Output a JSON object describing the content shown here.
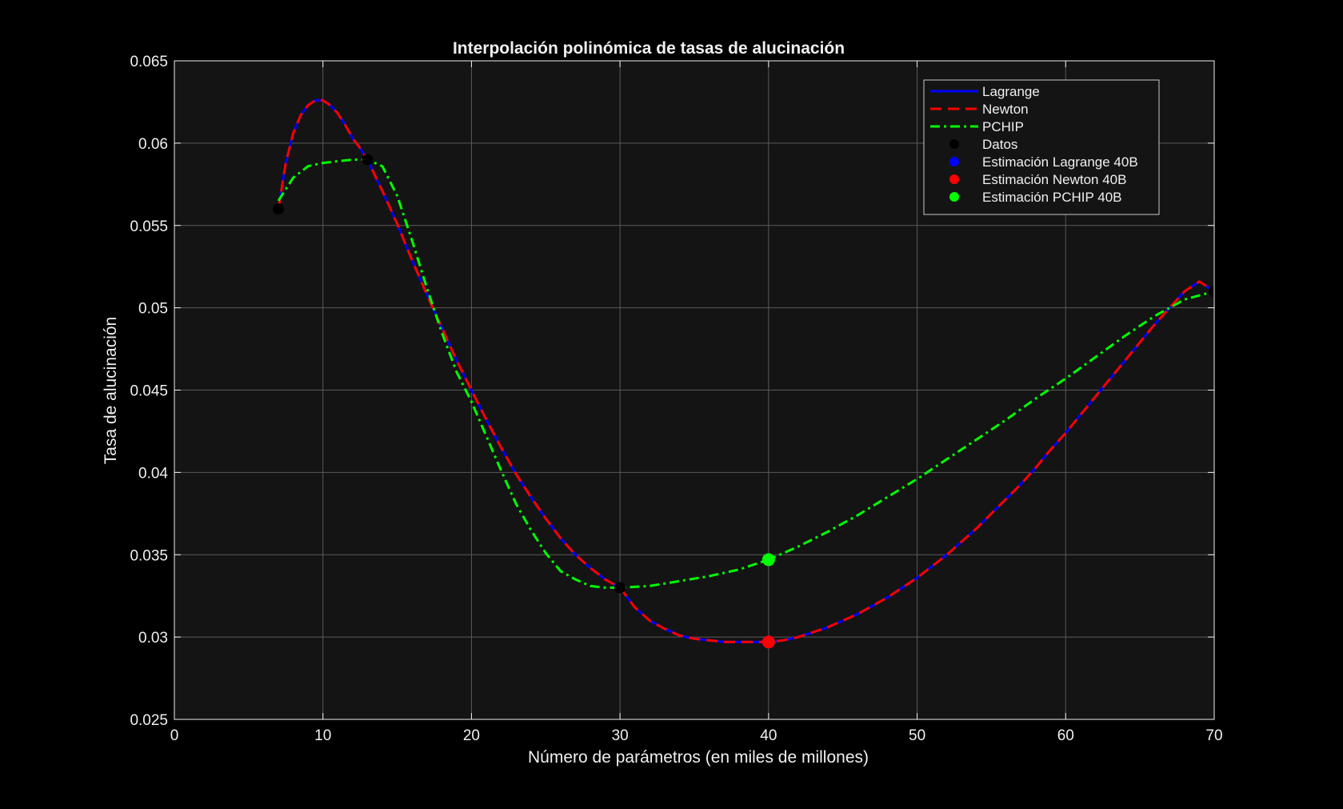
{
  "chart_data": {
    "type": "line",
    "title": "Interpolación polinómica de tasas de alucinación",
    "xlabel": "Número de parámetros (en miles de millones)",
    "ylabel": "Tasa de alucinación",
    "xlim": [
      0,
      70
    ],
    "ylim": [
      0.025,
      0.065
    ],
    "xticks": [
      0,
      10,
      20,
      30,
      40,
      50,
      60,
      70
    ],
    "xtick_labels": [
      "0",
      "10",
      "20",
      "30",
      "40",
      "50",
      "60",
      "70"
    ],
    "yticks": [
      0.025,
      0.03,
      0.035,
      0.04,
      0.045,
      0.05,
      0.055,
      0.06,
      0.065
    ],
    "ytick_labels": [
      "0.025",
      "0.03",
      "0.035",
      "0.04",
      "0.045",
      "0.05",
      "0.055",
      "0.06",
      "0.065"
    ],
    "grid": true,
    "legend_position": "top-right",
    "colors": {
      "background": "#000000",
      "plot_background": "#141414",
      "grid": "#5a5a5a",
      "axis": "#f0f0f0",
      "lagrange": "#0000ff",
      "newton": "#ff0000",
      "pchip": "#00ff00",
      "datos": "#000000"
    },
    "series": [
      {
        "name": "Lagrange",
        "style": "solid",
        "color": "#0000ff",
        "x": [
          7,
          7.5,
          8,
          8.5,
          9,
          9.5,
          10,
          10.5,
          11,
          11.5,
          12,
          12.5,
          13,
          14,
          15,
          16,
          17,
          18,
          19,
          20,
          21,
          22,
          23,
          24,
          25,
          26,
          27,
          28,
          29,
          30,
          31,
          32,
          33,
          34,
          35,
          36,
          37,
          38,
          39,
          40,
          41,
          42,
          43,
          44,
          45,
          46,
          47,
          48,
          49,
          50,
          51,
          52,
          53,
          54,
          55,
          56,
          57,
          58,
          59,
          60,
          61,
          62,
          63,
          64,
          65,
          66,
          67,
          68,
          69,
          70
        ],
        "y": [
          0.056,
          0.0588,
          0.0606,
          0.0617,
          0.0623,
          0.0626,
          0.0626,
          0.0623,
          0.0618,
          0.0611,
          0.0603,
          0.0597,
          0.059,
          0.0571,
          0.0551,
          0.0529,
          0.0508,
          0.0488,
          0.0468,
          0.045,
          0.0432,
          0.0415,
          0.0399,
          0.0385,
          0.0372,
          0.036,
          0.035,
          0.0342,
          0.0335,
          0.033,
          0.0318,
          0.031,
          0.0305,
          0.0301,
          0.0299,
          0.0298,
          0.0297,
          0.0297,
          0.0297,
          0.0297,
          0.0298,
          0.03,
          0.0303,
          0.0306,
          0.031,
          0.0314,
          0.0319,
          0.0324,
          0.033,
          0.0336,
          0.0343,
          0.035,
          0.0358,
          0.0366,
          0.0375,
          0.0384,
          0.0393,
          0.0403,
          0.0414,
          0.0424,
          0.0435,
          0.0446,
          0.0457,
          0.0468,
          0.0479,
          0.049,
          0.05,
          0.051,
          0.0516,
          0.051
        ]
      },
      {
        "name": "Newton",
        "style": "dashed",
        "color": "#ff0000",
        "x": [
          7,
          7.5,
          8,
          8.5,
          9,
          9.5,
          10,
          10.5,
          11,
          11.5,
          12,
          12.5,
          13,
          14,
          15,
          16,
          17,
          18,
          19,
          20,
          21,
          22,
          23,
          24,
          25,
          26,
          27,
          28,
          29,
          30,
          31,
          32,
          33,
          34,
          35,
          36,
          37,
          38,
          39,
          40,
          41,
          42,
          43,
          44,
          45,
          46,
          47,
          48,
          49,
          50,
          51,
          52,
          53,
          54,
          55,
          56,
          57,
          58,
          59,
          60,
          61,
          62,
          63,
          64,
          65,
          66,
          67,
          68,
          69,
          70
        ],
        "y": [
          0.056,
          0.0588,
          0.0606,
          0.0617,
          0.0623,
          0.0626,
          0.0626,
          0.0623,
          0.0618,
          0.0611,
          0.0603,
          0.0597,
          0.059,
          0.0571,
          0.0551,
          0.0529,
          0.0508,
          0.0488,
          0.0468,
          0.045,
          0.0432,
          0.0415,
          0.0399,
          0.0385,
          0.0372,
          0.036,
          0.035,
          0.0342,
          0.0335,
          0.033,
          0.0318,
          0.031,
          0.0305,
          0.0301,
          0.0299,
          0.0298,
          0.0297,
          0.0297,
          0.0297,
          0.0297,
          0.0298,
          0.03,
          0.0303,
          0.0306,
          0.031,
          0.0314,
          0.0319,
          0.0324,
          0.033,
          0.0336,
          0.0343,
          0.035,
          0.0358,
          0.0366,
          0.0375,
          0.0384,
          0.0393,
          0.0403,
          0.0414,
          0.0424,
          0.0435,
          0.0446,
          0.0457,
          0.0468,
          0.0479,
          0.049,
          0.05,
          0.051,
          0.0516,
          0.051
        ]
      },
      {
        "name": "PCHIP",
        "style": "dashdot",
        "color": "#00ff00",
        "x": [
          7,
          8,
          9,
          10,
          11,
          12,
          13,
          14,
          15,
          16,
          17,
          18,
          19,
          20,
          21,
          22,
          23,
          24,
          25,
          26,
          27,
          28,
          29,
          30,
          32,
          34,
          36,
          38,
          40,
          42,
          44,
          46,
          48,
          50,
          52,
          54,
          56,
          58,
          60,
          62,
          64,
          66,
          68,
          70
        ],
        "y": [
          0.0565,
          0.0579,
          0.0586,
          0.0588,
          0.0589,
          0.059,
          0.059,
          0.0586,
          0.0568,
          0.0541,
          0.0512,
          0.0485,
          0.0461,
          0.0443,
          0.0422,
          0.0401,
          0.0381,
          0.0365,
          0.0351,
          0.034,
          0.0335,
          0.0331,
          0.033,
          0.033,
          0.0331,
          0.0334,
          0.0337,
          0.0341,
          0.0347,
          0.0355,
          0.0364,
          0.0374,
          0.0385,
          0.0396,
          0.0408,
          0.042,
          0.0432,
          0.0445,
          0.0457,
          0.047,
          0.0483,
          0.0495,
          0.0505,
          0.051
        ]
      }
    ],
    "points": [
      {
        "name": "Datos",
        "color": "#000000",
        "x": [
          7,
          13,
          30,
          70
        ],
        "y": [
          0.056,
          0.059,
          0.033,
          0.051
        ]
      },
      {
        "name": "Estimación Lagrange 40B",
        "color": "#0000ff",
        "x": [
          40
        ],
        "y": [
          0.0297
        ]
      },
      {
        "name": "Estimación Newton 40B",
        "color": "#ff0000",
        "x": [
          40
        ],
        "y": [
          0.0297
        ]
      },
      {
        "name": "Estimación PCHIP 40B",
        "color": "#00ff00",
        "x": [
          40
        ],
        "y": [
          0.0347
        ]
      }
    ]
  }
}
